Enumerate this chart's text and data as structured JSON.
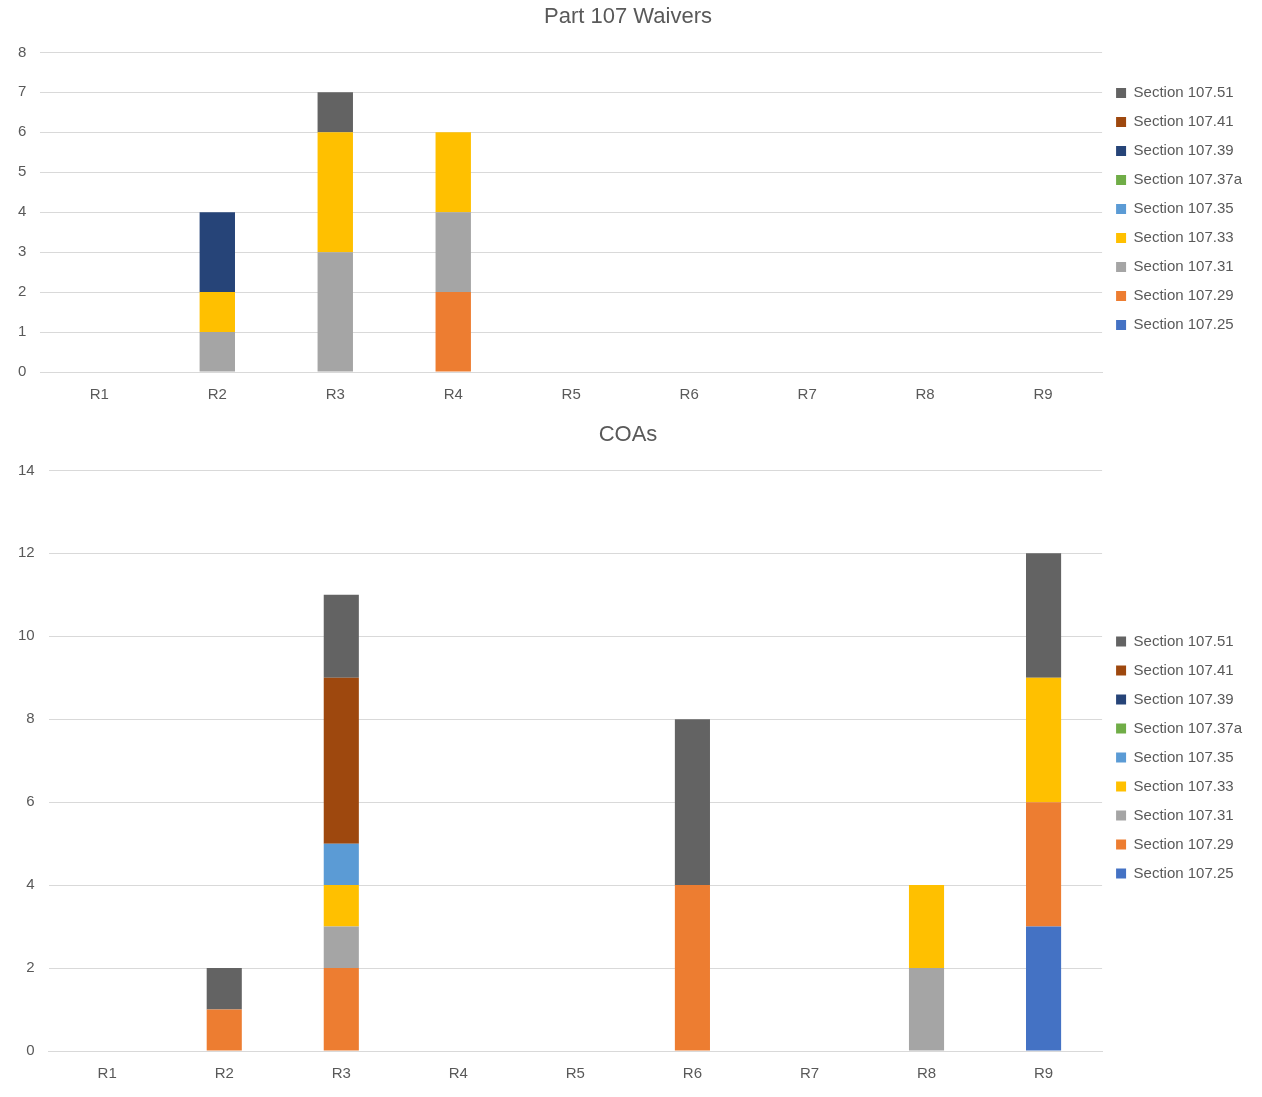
{
  "chart_data": [
    {
      "type": "bar",
      "title": "Part 107 Waivers",
      "categories": [
        "R1",
        "R2",
        "R3",
        "R4",
        "R5",
        "R6",
        "R7",
        "R8",
        "R9"
      ],
      "stacked": true,
      "grid": "y",
      "legend": "right",
      "ylim": [
        0,
        8
      ],
      "yticks": [
        0,
        1,
        2,
        3,
        4,
        5,
        6,
        7,
        8
      ],
      "series": [
        {
          "name": "Section 107.25",
          "color": "#4472c4",
          "values": [
            0,
            0,
            0,
            0,
            0,
            0,
            0,
            0,
            0
          ]
        },
        {
          "name": "Section 107.29",
          "color": "#ed7d31",
          "values": [
            0,
            0,
            0,
            2,
            0,
            0,
            0,
            0,
            0
          ]
        },
        {
          "name": "Section 107.31",
          "color": "#a5a5a5",
          "values": [
            0,
            1,
            3,
            2,
            0,
            0,
            0,
            0,
            0
          ]
        },
        {
          "name": "Section 107.33",
          "color": "#ffc000",
          "values": [
            0,
            1,
            3,
            2,
            0,
            0,
            0,
            0,
            0
          ]
        },
        {
          "name": "Section 107.35",
          "color": "#5b9bd5",
          "values": [
            0,
            0,
            0,
            0,
            0,
            0,
            0,
            0,
            0
          ]
        },
        {
          "name": "Section 107.37a",
          "color": "#70ad47",
          "values": [
            0,
            0,
            0,
            0,
            0,
            0,
            0,
            0,
            0
          ]
        },
        {
          "name": "Section 107.39",
          "color": "#264478",
          "values": [
            0,
            2,
            0,
            0,
            0,
            0,
            0,
            0,
            0
          ]
        },
        {
          "name": "Section 107.41",
          "color": "#9e480e",
          "values": [
            0,
            0,
            0,
            0,
            0,
            0,
            0,
            0,
            0
          ]
        },
        {
          "name": "Section 107.51",
          "color": "#636363",
          "values": [
            0,
            0,
            1,
            0,
            0,
            0,
            0,
            0,
            0
          ]
        }
      ]
    },
    {
      "type": "bar",
      "title": "COAs",
      "categories": [
        "R1",
        "R2",
        "R3",
        "R4",
        "R5",
        "R6",
        "R7",
        "R8",
        "R9"
      ],
      "stacked": true,
      "grid": "y",
      "legend": "right",
      "ylim": [
        0,
        14
      ],
      "yticks": [
        0,
        2,
        4,
        6,
        8,
        10,
        12,
        14
      ],
      "series": [
        {
          "name": "Section 107.25",
          "color": "#4472c4",
          "values": [
            0,
            0,
            0,
            0,
            0,
            0,
            0,
            0,
            3
          ]
        },
        {
          "name": "Section 107.29",
          "color": "#ed7d31",
          "values": [
            0,
            1,
            2,
            0,
            0,
            4,
            0,
            0,
            3
          ]
        },
        {
          "name": "Section 107.31",
          "color": "#a5a5a5",
          "values": [
            0,
            0,
            1,
            0,
            0,
            0,
            0,
            2,
            0
          ]
        },
        {
          "name": "Section 107.33",
          "color": "#ffc000",
          "values": [
            0,
            0,
            1,
            0,
            0,
            0,
            0,
            2,
            3
          ]
        },
        {
          "name": "Section 107.35",
          "color": "#5b9bd5",
          "values": [
            0,
            0,
            1,
            0,
            0,
            0,
            0,
            0,
            0
          ]
        },
        {
          "name": "Section 107.37a",
          "color": "#70ad47",
          "values": [
            0,
            0,
            0,
            0,
            0,
            0,
            0,
            0,
            0
          ]
        },
        {
          "name": "Section 107.39",
          "color": "#264478",
          "values": [
            0,
            0,
            0,
            0,
            0,
            0,
            0,
            0,
            0
          ]
        },
        {
          "name": "Section 107.41",
          "color": "#9e480e",
          "values": [
            0,
            0,
            4,
            0,
            0,
            0,
            0,
            0,
            0
          ]
        },
        {
          "name": "Section 107.51",
          "color": "#636363",
          "values": [
            0,
            1,
            2,
            0,
            0,
            4,
            0,
            0,
            3
          ]
        }
      ]
    }
  ]
}
